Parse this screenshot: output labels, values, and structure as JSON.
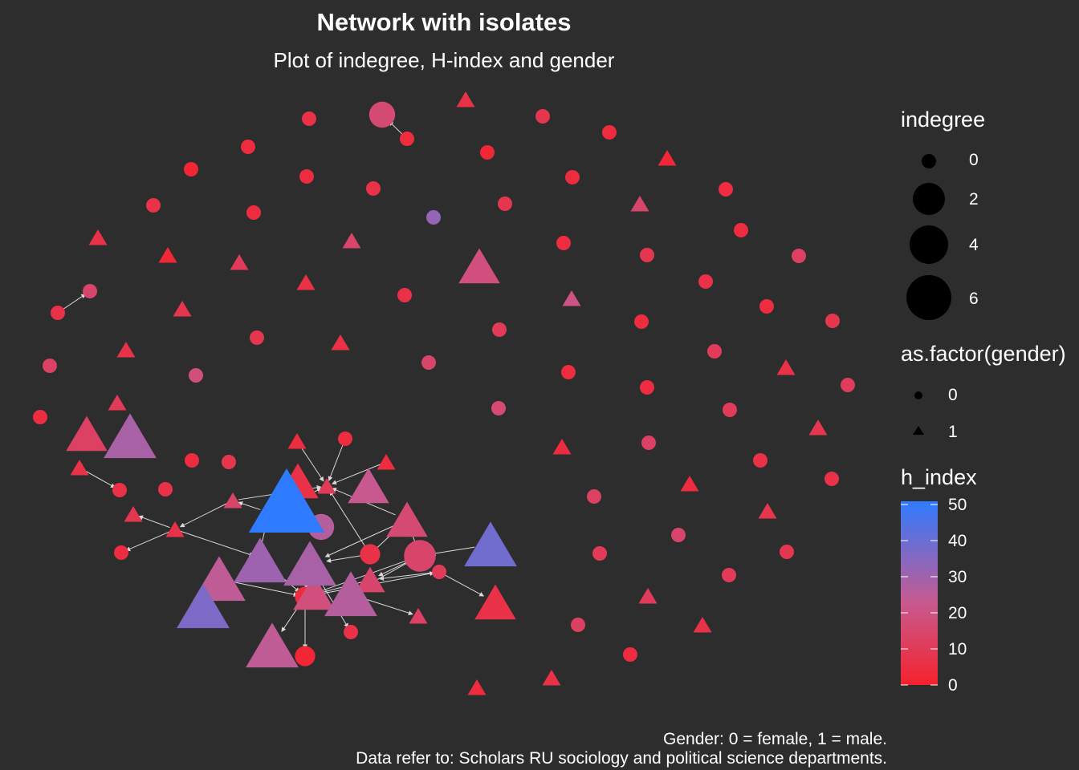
{
  "title": "Network with isolates",
  "subtitle": "Plot of indegree, H-index and gender",
  "caption": {
    "line1": "Gender: 0 = female, 1 = male.",
    "line2": "Data refer to: Scholars RU sociology and political science departments."
  },
  "legends": {
    "indegree": {
      "title": "indegree",
      "entries": [
        {
          "label": "0",
          "value": 0
        },
        {
          "label": "2",
          "value": 2
        },
        {
          "label": "4",
          "value": 4
        },
        {
          "label": "6",
          "value": 6
        }
      ]
    },
    "gender": {
      "title": "as.factor(gender)",
      "entries": [
        {
          "label": "0",
          "shape": "circle"
        },
        {
          "label": "1",
          "shape": "triangle"
        }
      ]
    },
    "h_index": {
      "title": "h_index",
      "ticks": [
        "50",
        "40",
        "30",
        "20",
        "10",
        "0"
      ],
      "colors": {
        "low": "#f5222d",
        "mid": "#c75a90",
        "high": "#2f7bff"
      }
    }
  },
  "colors": {
    "background": "#2d2d2d",
    "edge": "#d9d9d9",
    "text": "#ffffff",
    "legend_marker": "#000000"
  },
  "network": {
    "nodes": [
      {
        "id": 1,
        "shape": "circle",
        "indegree": 0,
        "h_index": 6
      },
      {
        "id": 2,
        "shape": "circle",
        "indegree": 2,
        "h_index": 16
      },
      {
        "id": 3,
        "shape": "triangle",
        "indegree": 0,
        "h_index": 6
      },
      {
        "id": 4,
        "shape": "circle",
        "indegree": 0,
        "h_index": 4
      },
      {
        "id": 5,
        "shape": "circle",
        "indegree": 0,
        "h_index": 8
      },
      {
        "id": 6,
        "shape": "circle",
        "indegree": 0,
        "h_index": 4
      },
      {
        "id": 7,
        "shape": "circle",
        "indegree": 0,
        "h_index": 4
      },
      {
        "id": 8,
        "shape": "circle",
        "indegree": 0,
        "h_index": 2
      },
      {
        "id": 9,
        "shape": "circle",
        "indegree": 0,
        "h_index": 2
      },
      {
        "id": 10,
        "shape": "circle",
        "indegree": 0,
        "h_index": 4
      },
      {
        "id": 11,
        "shape": "triangle",
        "indegree": 0,
        "h_index": 2
      },
      {
        "id": 12,
        "shape": "circle",
        "indegree": 0,
        "h_index": 4
      },
      {
        "id": 13,
        "shape": "circle",
        "indegree": 0,
        "h_index": 6
      },
      {
        "id": 14,
        "shape": "circle",
        "indegree": 0,
        "h_index": 4
      },
      {
        "id": 15,
        "shape": "circle",
        "indegree": 0,
        "h_index": 8
      },
      {
        "id": 16,
        "shape": "circle",
        "indegree": 0,
        "h_index": 6
      },
      {
        "id": 17,
        "shape": "circle",
        "indegree": 0,
        "h_index": 4
      },
      {
        "id": 18,
        "shape": "circle",
        "indegree": 0,
        "h_index": 32
      },
      {
        "id": 19,
        "shape": "triangle",
        "indegree": 0,
        "h_index": 14
      },
      {
        "id": 20,
        "shape": "triangle",
        "indegree": 0,
        "h_index": 6
      },
      {
        "id": 21,
        "shape": "triangle",
        "indegree": 0,
        "h_index": 14
      },
      {
        "id": 22,
        "shape": "circle",
        "indegree": 0,
        "h_index": 4
      },
      {
        "id": 23,
        "shape": "triangle",
        "indegree": 0,
        "h_index": 2
      },
      {
        "id": 24,
        "shape": "triangle",
        "indegree": 0,
        "h_index": 10
      },
      {
        "id": 25,
        "shape": "circle",
        "indegree": 0,
        "h_index": 4
      },
      {
        "id": 26,
        "shape": "circle",
        "indegree": 0,
        "h_index": 8
      },
      {
        "id": 27,
        "shape": "triangle",
        "indegree": 2,
        "h_index": 18
      },
      {
        "id": 28,
        "shape": "circle",
        "indegree": 0,
        "h_index": 12
      },
      {
        "id": 29,
        "shape": "triangle",
        "indegree": 0,
        "h_index": 6
      },
      {
        "id": 30,
        "shape": "circle",
        "indegree": 0,
        "h_index": 6
      },
      {
        "id": 31,
        "shape": "circle",
        "indegree": 0,
        "h_index": 6
      },
      {
        "id": 32,
        "shape": "circle",
        "indegree": 0,
        "h_index": 6
      },
      {
        "id": 33,
        "shape": "triangle",
        "indegree": 0,
        "h_index": 8
      },
      {
        "id": 34,
        "shape": "triangle",
        "indegree": 0,
        "h_index": 20
      },
      {
        "id": 35,
        "shape": "circle",
        "indegree": 0,
        "h_index": 4
      },
      {
        "id": 36,
        "shape": "circle",
        "indegree": 0,
        "h_index": 8
      },
      {
        "id": 37,
        "shape": "circle",
        "indegree": 0,
        "h_index": 8
      },
      {
        "id": 38,
        "shape": "circle",
        "indegree": 0,
        "h_index": 4
      },
      {
        "id": 39,
        "shape": "circle",
        "indegree": 0,
        "h_index": 10
      },
      {
        "id": 40,
        "shape": "triangle",
        "indegree": 0,
        "h_index": 6
      },
      {
        "id": 41,
        "shape": "triangle",
        "indegree": 0,
        "h_index": 6
      },
      {
        "id": 42,
        "shape": "circle",
        "indegree": 0,
        "h_index": 10
      },
      {
        "id": 43,
        "shape": "circle",
        "indegree": 0,
        "h_index": 14
      },
      {
        "id": 44,
        "shape": "circle",
        "indegree": 0,
        "h_index": 12
      },
      {
        "id": 45,
        "shape": "circle",
        "indegree": 0,
        "h_index": 18
      },
      {
        "id": 46,
        "shape": "circle",
        "indegree": 0,
        "h_index": 4
      },
      {
        "id": 47,
        "shape": "triangle",
        "indegree": 0,
        "h_index": 6
      },
      {
        "id": 48,
        "shape": "circle",
        "indegree": 0,
        "h_index": 4
      },
      {
        "id": 49,
        "shape": "circle",
        "indegree": 0,
        "h_index": 10
      },
      {
        "id": 50,
        "shape": "triangle",
        "indegree": 0,
        "h_index": 10
      },
      {
        "id": 51,
        "shape": "circle",
        "indegree": 0,
        "h_index": 10
      },
      {
        "id": 52,
        "shape": "circle",
        "indegree": 0,
        "h_index": 4
      },
      {
        "id": 53,
        "shape": "circle",
        "indegree": 0,
        "h_index": 16
      },
      {
        "id": 54,
        "shape": "triangle",
        "indegree": 0,
        "h_index": 8
      },
      {
        "id": 55,
        "shape": "triangle",
        "indegree": 0,
        "h_index": 4
      },
      {
        "id": 56,
        "shape": "circle",
        "indegree": 0,
        "h_index": 12
      },
      {
        "id": 57,
        "shape": "circle",
        "indegree": 0,
        "h_index": 6
      },
      {
        "id": 58,
        "shape": "triangle",
        "indegree": 0,
        "h_index": 6
      },
      {
        "id": 59,
        "shape": "circle",
        "indegree": 0,
        "h_index": 6
      },
      {
        "id": 60,
        "shape": "triangle",
        "indegree": 0,
        "h_index": 4
      },
      {
        "id": 61,
        "shape": "circle",
        "indegree": 0,
        "h_index": 12
      },
      {
        "id": 62,
        "shape": "triangle",
        "indegree": 0,
        "h_index": 8
      },
      {
        "id": 63,
        "shape": "circle",
        "indegree": 0,
        "h_index": 14
      },
      {
        "id": 64,
        "shape": "circle",
        "indegree": 0,
        "h_index": 10
      },
      {
        "id": 65,
        "shape": "circle",
        "indegree": 0,
        "h_index": 8
      },
      {
        "id": 66,
        "shape": "circle",
        "indegree": 0,
        "h_index": 10
      },
      {
        "id": 67,
        "shape": "triangle",
        "indegree": 0,
        "h_index": 10
      },
      {
        "id": 68,
        "shape": "circle",
        "indegree": 0,
        "h_index": 12
      },
      {
        "id": 69,
        "shape": "triangle",
        "indegree": 0,
        "h_index": 6
      },
      {
        "id": 70,
        "shape": "circle",
        "indegree": 0,
        "h_index": 4
      },
      {
        "id": 71,
        "shape": "triangle",
        "indegree": 0,
        "h_index": 6
      },
      {
        "id": 72,
        "shape": "triangle",
        "indegree": 0,
        "h_index": 4
      },
      {
        "id": 73,
        "shape": "circle",
        "indegree": 0,
        "h_index": 14
      },
      {
        "id": 74,
        "shape": "circle",
        "indegree": 0,
        "h_index": 6
      },
      {
        "id": 75,
        "shape": "triangle",
        "indegree": 0,
        "h_index": 8
      },
      {
        "id": 76,
        "shape": "circle",
        "indegree": 0,
        "h_index": 4
      },
      {
        "id": 77,
        "shape": "triangle",
        "indegree": 0,
        "h_index": 6
      },
      {
        "id": 78,
        "shape": "circle",
        "indegree": 0,
        "h_index": 8
      },
      {
        "id": 79,
        "shape": "triangle",
        "indegree": 0,
        "h_index": 4
      },
      {
        "id": 80,
        "shape": "circle",
        "indegree": 0,
        "h_index": 4
      },
      {
        "id": 81,
        "shape": "triangle",
        "indegree": 0,
        "h_index": 4
      },
      {
        "id": 82,
        "shape": "triangle",
        "indegree": 0,
        "h_index": 10
      },
      {
        "id": 83,
        "shape": "triangle",
        "indegree": 0,
        "h_index": 14
      },
      {
        "id": 84,
        "shape": "triangle",
        "indegree": 1,
        "h_index": 18
      },
      {
        "id": 85,
        "shape": "circle",
        "indegree": 2,
        "h_index": 26
      },
      {
        "id": 86,
        "shape": "triangle",
        "indegree": 2,
        "h_index": 16
      },
      {
        "id": 87,
        "shape": "circle",
        "indegree": 0,
        "h_index": 4
      },
      {
        "id": 88,
        "shape": "triangle",
        "indegree": 3,
        "h_index": 38
      },
      {
        "id": 89,
        "shape": "circle",
        "indegree": 1,
        "h_index": 6
      },
      {
        "id": 90,
        "shape": "circle",
        "indegree": 3,
        "h_index": 14
      },
      {
        "id": 91,
        "shape": "triangle",
        "indegree": 3,
        "h_index": 28
      },
      {
        "id": 92,
        "shape": "circle",
        "indegree": 0,
        "h_index": 10
      },
      {
        "id": 93,
        "shape": "triangle",
        "indegree": 3,
        "h_index": 24
      },
      {
        "id": 94,
        "shape": "triangle",
        "indegree": 3,
        "h_index": 26
      },
      {
        "id": 95,
        "shape": "triangle",
        "indegree": 2,
        "h_index": 6
      },
      {
        "id": 96,
        "shape": "triangle",
        "indegree": 3,
        "h_index": 36
      },
      {
        "id": 97,
        "shape": "circle",
        "indegree": 1,
        "h_index": 4
      },
      {
        "id": 98,
        "shape": "triangle",
        "indegree": 0,
        "h_index": 12
      },
      {
        "id": 99,
        "shape": "triangle",
        "indegree": 3,
        "h_index": 24
      },
      {
        "id": 100,
        "shape": "circle",
        "indegree": 0,
        "h_index": 6
      },
      {
        "id": 101,
        "shape": "circle",
        "indegree": 1,
        "h_index": 2
      },
      {
        "id": 102,
        "shape": "triangle",
        "indegree": 3,
        "h_index": 28
      },
      {
        "id": 103,
        "shape": "circle",
        "indegree": 0,
        "h_index": 6
      },
      {
        "id": 104,
        "shape": "triangle",
        "indegree": 2,
        "h_index": 12
      },
      {
        "id": 105,
        "shape": "circle",
        "indegree": 0,
        "h_index": 4
      },
      {
        "id": 106,
        "shape": "triangle",
        "indegree": 5,
        "h_index": 50
      },
      {
        "id": 107,
        "shape": "triangle",
        "indegree": 2,
        "h_index": 6
      },
      {
        "id": 108,
        "shape": "triangle",
        "indegree": 2,
        "h_index": 22
      },
      {
        "id": 109,
        "shape": "triangle",
        "indegree": 3,
        "h_index": 30
      },
      {
        "id": 110,
        "shape": "triangle",
        "indegree": 1,
        "h_index": 14
      },
      {
        "id": 111,
        "shape": "triangle",
        "indegree": 2,
        "h_index": 18
      }
    ]
  }
}
